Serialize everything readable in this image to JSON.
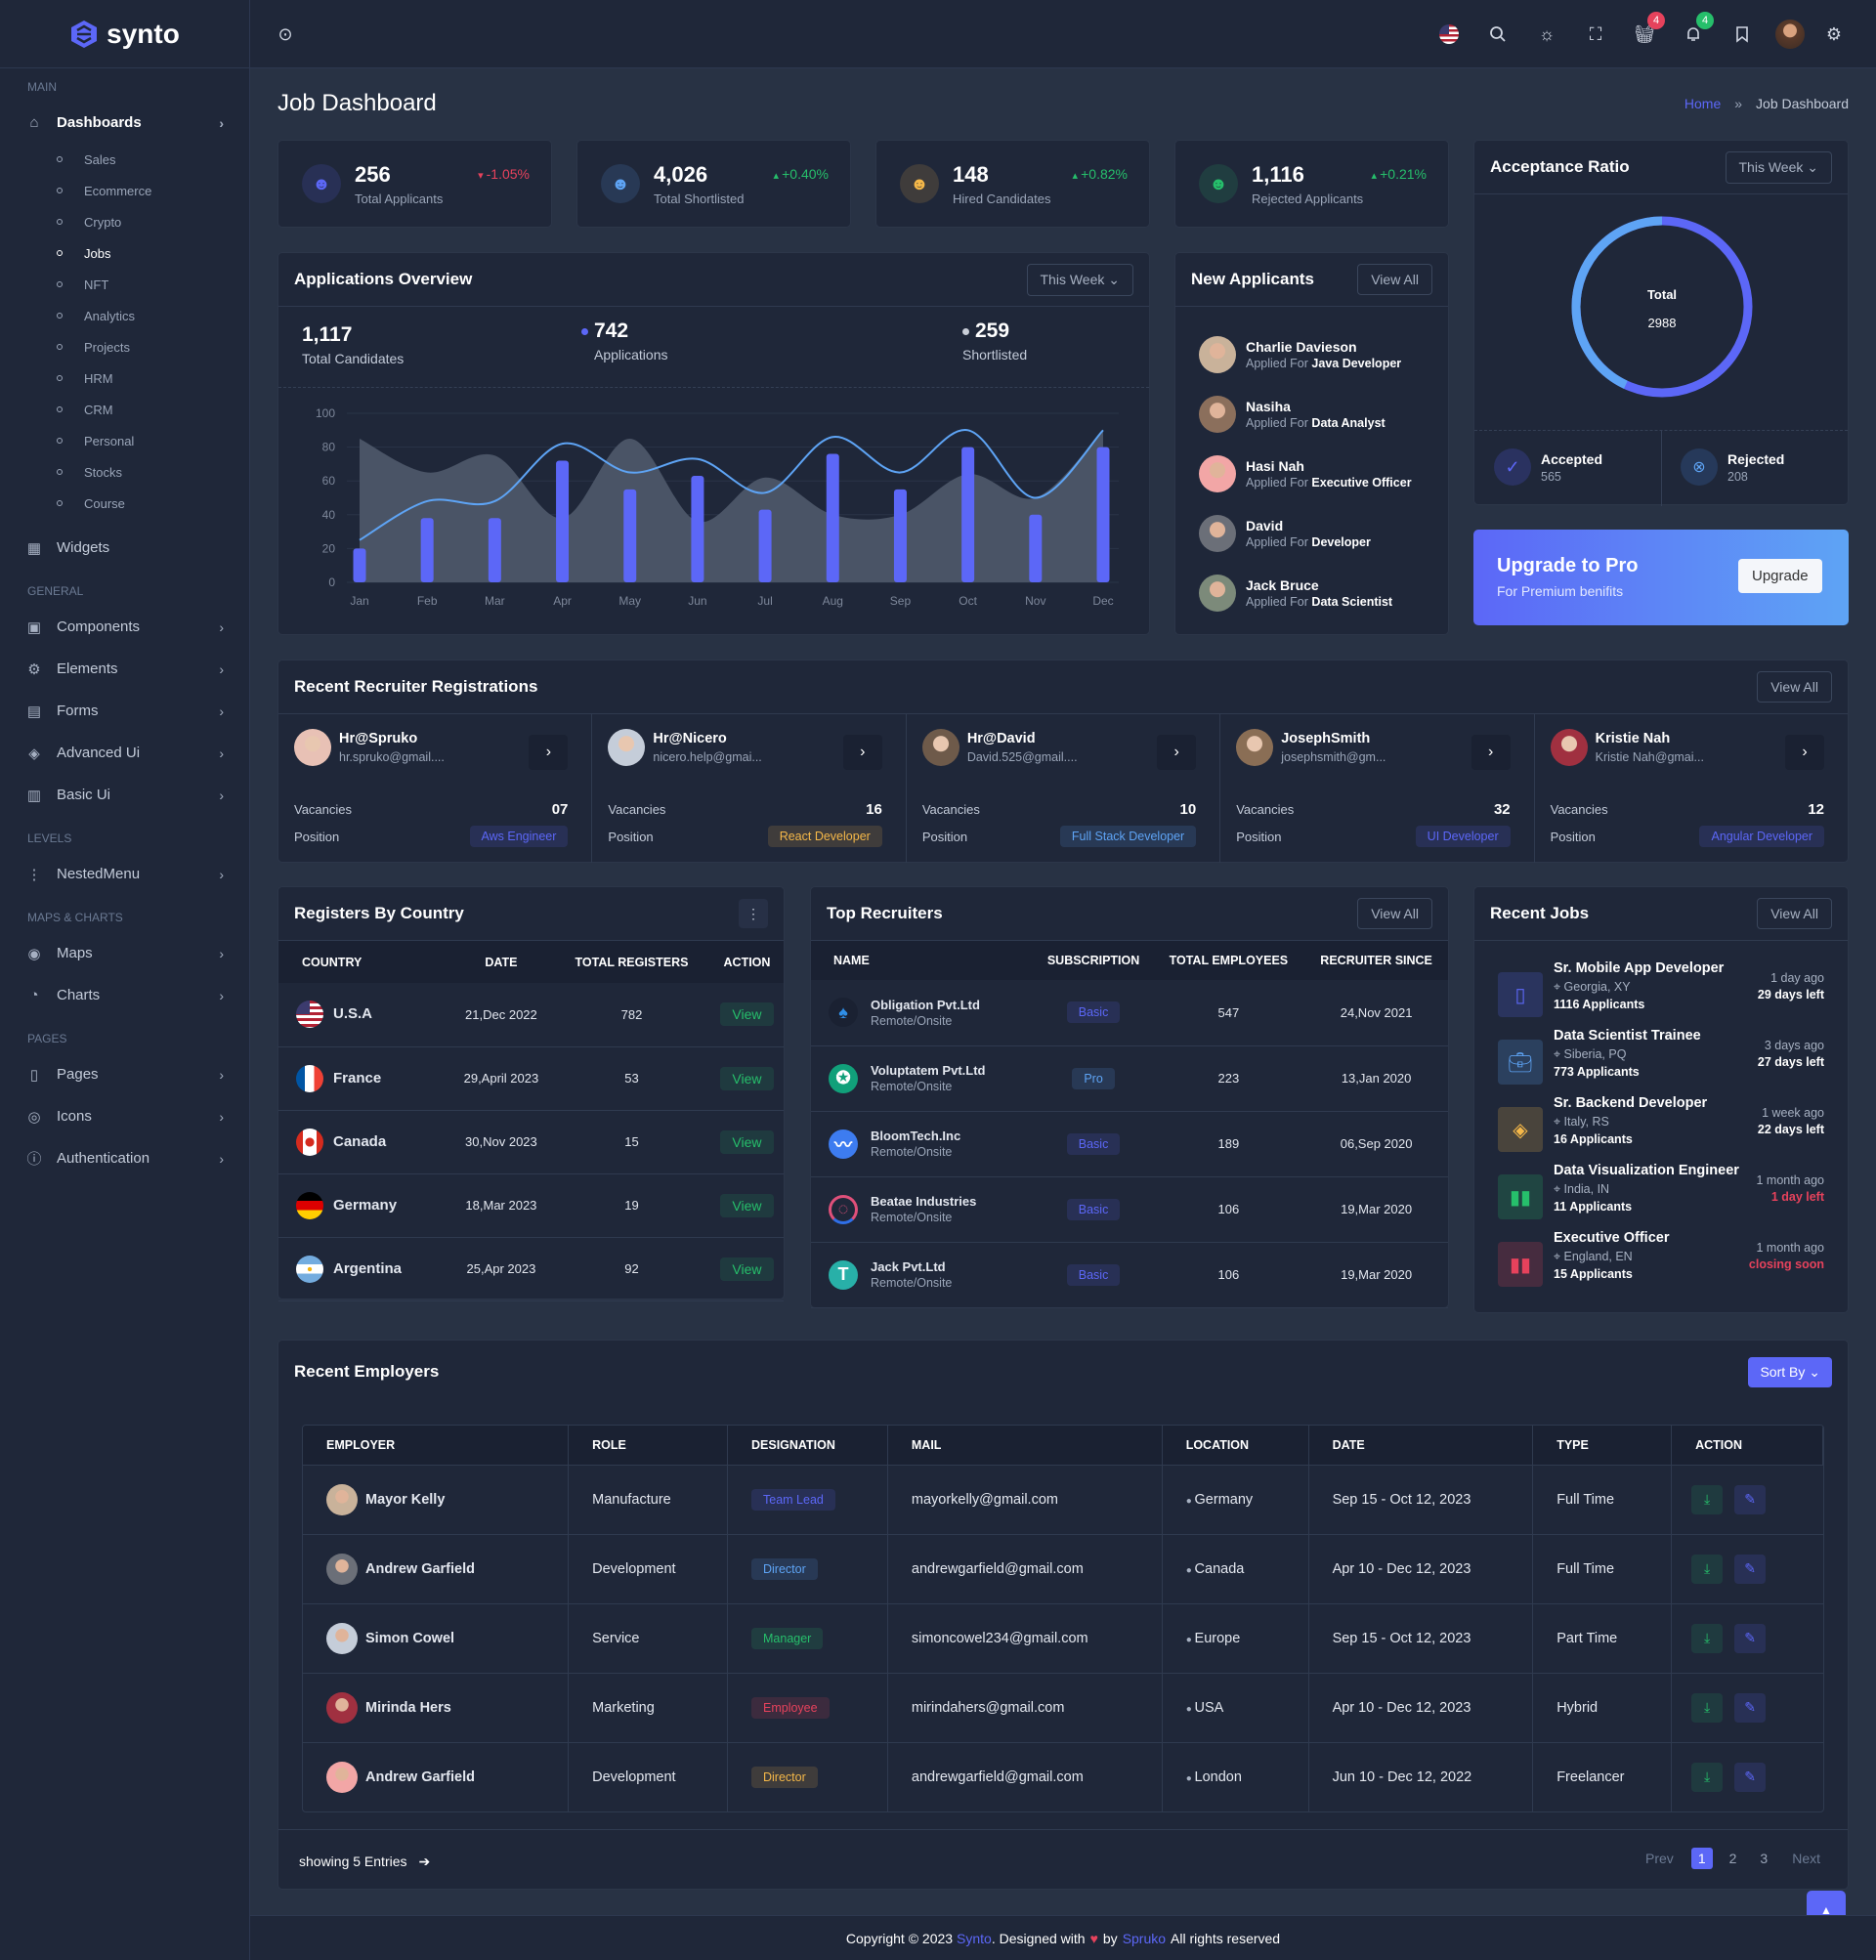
{
  "brand": {
    "name": "synto"
  },
  "header": {
    "cart_badge": "4",
    "notifications_badge": "4",
    "colors": {
      "cart_badge": "#e6425c",
      "notifications_badge": "#26bf6b"
    }
  },
  "sidebar": {
    "sections": [
      {
        "heading": "MAIN",
        "items": [
          {
            "label": "Dashboards",
            "icon": "home-icon",
            "active": true,
            "sub": [
              "Sales",
              "Ecommerce",
              "Crypto",
              "Jobs",
              "NFT",
              "Analytics",
              "Projects",
              "HRM",
              "CRM",
              "Personal",
              "Stocks",
              "Course"
            ],
            "active_sub": "Jobs"
          },
          {
            "label": "Widgets",
            "icon": "widgets-icon"
          }
        ]
      },
      {
        "heading": "GENERAL",
        "items": [
          {
            "label": "Components",
            "icon": "box-icon",
            "chevron": true
          },
          {
            "label": "Elements",
            "icon": "cpu-icon",
            "chevron": true
          },
          {
            "label": "Forms",
            "icon": "file-icon",
            "chevron": true
          },
          {
            "label": "Advanced Ui",
            "icon": "layers-icon",
            "chevron": true
          },
          {
            "label": "Basic Ui",
            "icon": "document-icon",
            "chevron": true
          }
        ]
      },
      {
        "heading": "LEVELS",
        "items": [
          {
            "label": "NestedMenu",
            "icon": "tree-icon",
            "chevron": true
          }
        ]
      },
      {
        "heading": "MAPS & CHARTS",
        "items": [
          {
            "label": "Maps",
            "icon": "map-pin-icon",
            "chevron": true
          },
          {
            "label": "Charts",
            "icon": "pie-chart-icon",
            "chevron": true
          }
        ]
      },
      {
        "heading": "PAGES",
        "items": [
          {
            "label": "Pages",
            "icon": "book-icon",
            "chevron": true
          },
          {
            "label": "Icons",
            "icon": "globe-icon",
            "chevron": true
          },
          {
            "label": "Authentication",
            "icon": "info-icon",
            "chevron": true
          }
        ]
      }
    ]
  },
  "page": {
    "title": "Job Dashboard",
    "breadcrumb": {
      "home": "Home",
      "separator": "»",
      "current": "Job Dashboard"
    }
  },
  "stats": [
    {
      "value": "256",
      "label": "Total Applicants",
      "change": "-1.05%",
      "direction": "down",
      "color": "#5c67f7"
    },
    {
      "value": "4,026",
      "label": "Total Shortlisted",
      "change": "+0.40%",
      "direction": "up",
      "color": "#5ea4f5"
    },
    {
      "value": "148",
      "label": "Hired Candidates",
      "change": "+0.82%",
      "direction": "up",
      "color": "#f5b849"
    },
    {
      "value": "1,116",
      "label": "Rejected Applicants",
      "change": "+0.21%",
      "direction": "up",
      "color": "#26bf6b"
    }
  ],
  "applications_overview": {
    "title": "Applications Overview",
    "filter": "This Week",
    "total": {
      "value": "1,117",
      "label": "Total Candidates"
    },
    "applications": {
      "value": "742",
      "label": "Applications"
    },
    "shortlisted": {
      "value": "259",
      "label": "Shortlisted"
    },
    "chart_data": {
      "type": "bar",
      "categories": [
        "Jan",
        "Feb",
        "Mar",
        "Apr",
        "May",
        "Jun",
        "Jul",
        "Aug",
        "Sep",
        "Oct",
        "Nov",
        "Dec"
      ],
      "ylim": [
        0,
        100
      ],
      "yticks": [
        0,
        20,
        40,
        60,
        80,
        100
      ],
      "grid": true,
      "series": [
        {
          "name": "Applications",
          "type": "bar",
          "color": "#5c67f7",
          "values": [
            20,
            38,
            38,
            72,
            55,
            63,
            43,
            76,
            55,
            80,
            40,
            80
          ]
        },
        {
          "type": "line",
          "color": "#5ea4f5",
          "values": [
            25,
            48,
            48,
            82,
            65,
            73,
            53,
            86,
            65,
            90,
            50,
            90
          ]
        },
        {
          "name": "Shortlisted",
          "type": "area",
          "color": "#4a5466",
          "values": [
            85,
            65,
            75,
            38,
            85,
            36,
            62,
            40,
            40,
            64,
            50,
            90
          ]
        }
      ]
    }
  },
  "acceptance": {
    "title": "Acceptance Ratio",
    "filter": "This Week",
    "total_label": "Total",
    "total": "2988",
    "accepted": {
      "label": "Accepted",
      "value": "565"
    },
    "rejected": {
      "label": "Rejected",
      "value": "208"
    }
  },
  "upgrade": {
    "title": "Upgrade to Pro",
    "subtitle": "For Premium benifits",
    "button": "Upgrade"
  },
  "new_applicants": {
    "title": "New Applicants",
    "view_all": "View All",
    "prefix": "Applied For",
    "items": [
      {
        "name": "Charlie Davieson",
        "role": "Java Developer"
      },
      {
        "name": "Nasiha",
        "role": "Data Analyst"
      },
      {
        "name": "Hasi Nah",
        "role": "Executive Officer"
      },
      {
        "name": "David",
        "role": "Developer"
      },
      {
        "name": "Jack Bruce",
        "role": "Data Scientist"
      }
    ]
  },
  "recruiters": {
    "title": "Recent Recruiter Registrations",
    "view_all": "View All",
    "vacancies_label": "Vacancies",
    "position_label": "Position",
    "items": [
      {
        "name": "Hr@Spruko",
        "email": "hr.spruko@gmail....",
        "vacancies": "07",
        "position": "Aws Engineer",
        "color": "#5c67f7"
      },
      {
        "name": "Hr@Nicero",
        "email": "nicero.help@gmai...",
        "vacancies": "16",
        "position": "React Developer",
        "color": "#f5b849"
      },
      {
        "name": "Hr@David",
        "email": "David.525@gmail....",
        "vacancies": "10",
        "position": "Full Stack Developer",
        "color": "#5ea4f5"
      },
      {
        "name": "JosephSmith",
        "email": "josephsmith@gm...",
        "vacancies": "32",
        "position": "UI Developer",
        "color": "#5c67f7"
      },
      {
        "name": "Kristie Nah",
        "email": "Kristie Nah@gmai...",
        "vacancies": "12",
        "position": "Angular Developer",
        "color": "#5c67f7"
      }
    ]
  },
  "countries": {
    "title": "Registers By Country",
    "columns": [
      "COUNTRY",
      "DATE",
      "TOTAL REGISTERS",
      "ACTION"
    ],
    "action": "View",
    "rows": [
      {
        "country": "U.S.A",
        "flag": "us-flag-icon",
        "date": "21,Dec 2022",
        "total": "782"
      },
      {
        "country": "France",
        "flag": "france-flag-icon",
        "date": "29,April 2023",
        "total": "53"
      },
      {
        "country": "Canada",
        "flag": "canada-flag-icon",
        "date": "30,Nov 2023",
        "total": "15"
      },
      {
        "country": "Germany",
        "flag": "germany-flag-icon",
        "date": "18,Mar 2023",
        "total": "19"
      },
      {
        "country": "Argentina",
        "flag": "argentina-flag-icon",
        "date": "25,Apr 2023",
        "total": "92"
      }
    ]
  },
  "top_recruiters": {
    "title": "Top Recruiters",
    "view_all": "View All",
    "columns": [
      "NAME",
      "SUBSCRIPTION",
      "TOTAL EMPLOYEES",
      "RECRUITER SINCE"
    ],
    "rows": [
      {
        "name": "Obligation Pvt.Ltd",
        "mode": "Remote/Onsite",
        "plan": "Basic",
        "employees": "547",
        "since": "24,Nov 2021",
        "logo": "playstation-logo-icon"
      },
      {
        "name": "Voluptatem Pvt.Ltd",
        "mode": "Remote/Onsite",
        "plan": "Pro",
        "employees": "223",
        "since": "13,Jan 2020",
        "logo": "teal-compass-logo-icon"
      },
      {
        "name": "BloomTech.Inc",
        "mode": "Remote/Onsite",
        "plan": "Basic",
        "employees": "189",
        "since": "06,Sep 2020",
        "logo": "bloomtech-logo-icon"
      },
      {
        "name": "Beatae Industries",
        "mode": "Remote/Onsite",
        "plan": "Basic",
        "employees": "106",
        "since": "19,Mar 2020",
        "logo": "ring-logo-icon"
      },
      {
        "name": "Jack Pvt.Ltd",
        "mode": "Remote/Onsite",
        "plan": "Basic",
        "employees": "106",
        "since": "19,Mar 2020",
        "logo": "t-logo-icon"
      }
    ]
  },
  "recent_jobs": {
    "title": "Recent Jobs",
    "view_all": "View All",
    "items": [
      {
        "title": "Sr. Mobile App Developer",
        "location": "Georgia, XY",
        "applicants": "1116 Applicants",
        "posted": "1 day ago",
        "left": "29 days left",
        "urgent": false,
        "icon": "mobile-icon",
        "color": "#5c67f7"
      },
      {
        "title": "Data Scientist Trainee",
        "location": "Siberia, PQ",
        "applicants": "773 Applicants",
        "posted": "3 days ago",
        "left": "27 days left",
        "urgent": false,
        "icon": "briefcase-icon",
        "color": "#5ea4f5"
      },
      {
        "title": "Sr. Backend Developer",
        "location": "Italy, RS",
        "applicants": "16 Applicants",
        "posted": "1 week ago",
        "left": "22 days left",
        "urgent": false,
        "icon": "stack-icon",
        "color": "#f5b849"
      },
      {
        "title": "Data Visualization Engineer",
        "location": "India, IN",
        "applicants": "11 Applicants",
        "posted": "1 month ago",
        "left": "1 day left",
        "urgent": true,
        "icon": "bar-chart-icon",
        "color": "#26bf6b"
      },
      {
        "title": "Executive Officer",
        "location": "England, EN",
        "applicants": "15 Applicants",
        "posted": "1 month ago",
        "left": "closing soon",
        "urgent": true,
        "icon": "bar-chart-icon",
        "color": "#e6425c"
      }
    ]
  },
  "employers": {
    "title": "Recent Employers",
    "sort_label": "Sort By",
    "columns": [
      "EMPLOYER",
      "ROLE",
      "DESIGNATION",
      "MAIL",
      "LOCATION",
      "DATE",
      "TYPE",
      "ACTION"
    ],
    "rows": [
      {
        "name": "Mayor Kelly",
        "role": "Manufacture",
        "designation": "Team Lead",
        "badge_color": "#5c67f7",
        "mail": "mayorkelly@gmail.com",
        "location": "Germany",
        "date": "Sep 15 - Oct 12, 2023",
        "type": "Full Time"
      },
      {
        "name": "Andrew Garfield",
        "role": "Development",
        "designation": "Director",
        "badge_color": "#5ea4f5",
        "mail": "andrewgarfield@gmail.com",
        "location": "Canada",
        "date": "Apr 10 - Dec 12, 2023",
        "type": "Full Time"
      },
      {
        "name": "Simon Cowel",
        "role": "Service",
        "designation": "Manager",
        "badge_color": "#26bf6b",
        "mail": "simoncowel234@gmail.com",
        "location": "Europe",
        "date": "Sep 15 - Oct 12, 2023",
        "type": "Part Time"
      },
      {
        "name": "Mirinda Hers",
        "role": "Marketing",
        "designation": "Employee",
        "badge_color": "#e6425c",
        "mail": "mirindahers@gmail.com",
        "location": "USA",
        "date": "Apr 10 - Dec 12, 2023",
        "type": "Hybrid"
      },
      {
        "name": "Andrew Garfield",
        "role": "Development",
        "designation": "Director",
        "badge_color": "#f5b849",
        "mail": "andrewgarfield@gmail.com",
        "location": "London",
        "date": "Jun 10 - Dec 12, 2022",
        "type": "Freelancer"
      }
    ],
    "showing": "showing 5 Entries",
    "pagination": {
      "prev": "Prev",
      "pages": [
        "1",
        "2",
        "3"
      ],
      "current": "1",
      "next": "Next"
    }
  },
  "footer": {
    "prefix": "Copyright © 2023",
    "brand": "Synto",
    "middle": ". Designed with",
    "by": "by",
    "company": "Spruko",
    "suffix": "All rights reserved"
  }
}
